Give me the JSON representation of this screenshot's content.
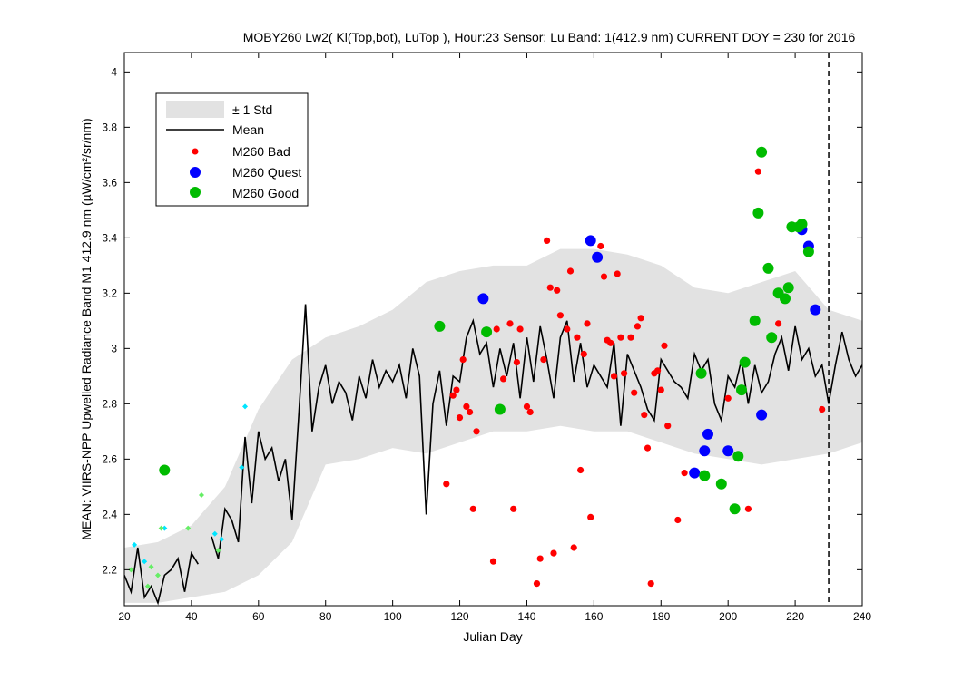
{
  "chart_data": {
    "type": "line",
    "title": "MOBY260   Lw2( Kl(Top,bot), LuTop ),   Hour:23 Sensor: Lu Band: 1(412.9 nm)   CURRENT DOY = 230 for 2016",
    "xlabel": "Julian Day",
    "ylabel": "MEAN: VIIRS-NPP Upwelled Radiance Band M1 412.9 nm (µW/cm²/sr/nm)",
    "xlim": [
      20,
      240
    ],
    "ylim": [
      2.07,
      4.07
    ],
    "x_ticks": [
      "20",
      "40",
      "60",
      "80",
      "100",
      "120",
      "140",
      "160",
      "180",
      "200",
      "220",
      "240"
    ],
    "y_ticks": [
      "2.2",
      "2.4",
      "2.6",
      "2.8",
      "3",
      "3.2",
      "3.4",
      "3.6",
      "3.8",
      "4"
    ],
    "current_doy": 230,
    "grid": false,
    "legend_position": "top-left",
    "legend": [
      {
        "label": "± 1 Std",
        "symbol": "band"
      },
      {
        "label": "Mean",
        "symbol": "line"
      },
      {
        "label": "M260 Bad",
        "symbol": "small-dot"
      },
      {
        "label": "M260 Quest",
        "symbol": "dot"
      },
      {
        "label": "M260 Good",
        "symbol": "dot"
      }
    ],
    "series": [
      {
        "name": "Mean",
        "color": "#000000",
        "x": [
          20,
          22,
          24,
          26,
          28,
          30,
          32,
          34,
          36,
          38,
          40,
          42,
          44,
          46,
          48,
          50,
          52,
          54,
          56,
          58,
          60,
          62,
          64,
          66,
          68,
          70,
          72,
          74,
          76,
          78,
          80,
          82,
          84,
          86,
          88,
          90,
          92,
          94,
          96,
          98,
          100,
          102,
          104,
          106,
          108,
          110,
          112,
          114,
          116,
          118,
          120,
          122,
          124,
          126,
          128,
          130,
          132,
          134,
          136,
          138,
          140,
          142,
          144,
          146,
          148,
          150,
          152,
          154,
          156,
          158,
          160,
          162,
          164,
          166,
          168,
          170,
          172,
          174,
          176,
          178,
          180,
          182,
          184,
          186,
          188,
          190,
          192,
          194,
          196,
          198,
          200,
          202,
          204,
          206,
          208,
          210,
          212,
          214,
          216,
          218,
          220,
          222,
          224,
          226,
          228,
          230,
          232,
          234,
          236,
          238,
          240
        ],
        "y": [
          2.18,
          2.12,
          2.28,
          2.1,
          2.14,
          2.08,
          2.18,
          2.2,
          2.24,
          2.12,
          2.26,
          2.22,
          null,
          2.32,
          2.24,
          2.42,
          2.38,
          2.3,
          2.68,
          2.44,
          2.7,
          2.6,
          2.64,
          2.52,
          2.6,
          2.38,
          2.76,
          3.16,
          2.7,
          2.86,
          2.94,
          2.8,
          2.88,
          2.84,
          2.74,
          2.9,
          2.82,
          2.96,
          2.86,
          2.92,
          2.88,
          2.94,
          2.82,
          3.0,
          2.9,
          2.4,
          2.8,
          2.92,
          2.72,
          2.9,
          2.88,
          3.04,
          3.1,
          2.98,
          3.02,
          2.86,
          3.0,
          2.9,
          3.02,
          2.82,
          3.04,
          2.88,
          3.08,
          2.96,
          2.82,
          3.04,
          3.1,
          2.88,
          3.02,
          2.86,
          2.94,
          2.9,
          2.86,
          3.02,
          2.72,
          2.98,
          2.92,
          2.86,
          2.78,
          2.74,
          2.96,
          2.92,
          2.88,
          2.86,
          2.82,
          2.98,
          2.92,
          2.96,
          2.8,
          2.74,
          2.9,
          2.86,
          2.96,
          2.8,
          2.94,
          2.84,
          2.88,
          2.98,
          3.04,
          2.92,
          3.08,
          2.96,
          3.0,
          2.9,
          2.94,
          2.8,
          2.94,
          3.06,
          2.96,
          2.9,
          2.94
        ]
      },
      {
        "name": "± 1 Std",
        "color": "#e2e2e2",
        "x": [
          20,
          30,
          40,
          50,
          60,
          70,
          80,
          90,
          100,
          110,
          120,
          130,
          140,
          150,
          160,
          170,
          180,
          190,
          200,
          210,
          220,
          230,
          240
        ],
        "lower": [
          2.08,
          2.08,
          2.1,
          2.12,
          2.18,
          2.3,
          2.58,
          2.6,
          2.64,
          2.62,
          2.66,
          2.7,
          2.7,
          2.72,
          2.7,
          2.7,
          2.66,
          2.62,
          2.6,
          2.58,
          2.6,
          2.62,
          2.66
        ],
        "upper": [
          2.28,
          2.3,
          2.36,
          2.5,
          2.78,
          2.96,
          3.04,
          3.08,
          3.14,
          3.24,
          3.28,
          3.3,
          3.3,
          3.36,
          3.36,
          3.34,
          3.3,
          3.22,
          3.2,
          3.24,
          3.28,
          3.14,
          3.1
        ]
      },
      {
        "name": "M260 Bad",
        "color": "#ff0000",
        "x": [
          116,
          118,
          119,
          120,
          121,
          122,
          123,
          124,
          125,
          128,
          130,
          131,
          133,
          135,
          136,
          137,
          138,
          140,
          141,
          143,
          144,
          145,
          146,
          147,
          148,
          149,
          150,
          152,
          153,
          154,
          155,
          156,
          157,
          158,
          159,
          162,
          163,
          164,
          165,
          166,
          167,
          168,
          169,
          171,
          172,
          173,
          174,
          175,
          176,
          177,
          178,
          179,
          180,
          181,
          182,
          185,
          187,
          200,
          206,
          209,
          215,
          226,
          228
        ],
        "y": [
          2.51,
          2.83,
          2.85,
          2.75,
          2.96,
          2.79,
          2.77,
          2.42,
          2.7,
          3.06,
          2.23,
          3.07,
          2.89,
          3.09,
          2.42,
          2.95,
          3.07,
          2.79,
          2.77,
          2.15,
          2.24,
          2.96,
          3.39,
          3.22,
          2.26,
          3.21,
          3.12,
          3.07,
          3.28,
          2.28,
          3.04,
          2.56,
          2.98,
          3.09,
          2.39,
          3.37,
          3.26,
          3.03,
          3.02,
          2.9,
          3.27,
          3.04,
          2.91,
          3.04,
          2.84,
          3.08,
          3.11,
          2.76,
          2.64,
          2.15,
          2.91,
          2.92,
          2.85,
          3.01,
          2.72,
          2.38,
          2.55,
          2.82,
          2.42,
          3.64,
          3.09,
          3.14,
          2.78
        ]
      },
      {
        "name": "M260 Quest",
        "color": "#0000ff",
        "x": [
          127,
          159,
          161,
          190,
          193,
          194,
          200,
          210,
          222,
          224,
          226
        ],
        "y": [
          3.18,
          3.39,
          3.33,
          2.55,
          2.63,
          2.69,
          2.63,
          2.76,
          3.43,
          3.37,
          3.14
        ]
      },
      {
        "name": "M260 Good",
        "color": "#00bb00",
        "x": [
          32,
          114,
          128,
          132,
          192,
          193,
          198,
          202,
          203,
          204,
          205,
          208,
          209,
          210,
          212,
          213,
          215,
          217,
          218,
          219,
          221,
          222,
          224
        ],
        "y": [
          2.56,
          3.08,
          3.06,
          2.78,
          2.91,
          2.54,
          2.51,
          2.42,
          2.61,
          2.85,
          2.95,
          3.1,
          3.49,
          3.71,
          3.29,
          3.04,
          3.2,
          3.18,
          3.22,
          3.44,
          3.44,
          3.45,
          3.35
        ]
      },
      {
        "name": "cyan-markers",
        "color": "#00e5ff",
        "x": [
          23,
          26,
          32,
          47,
          49,
          55,
          56
        ],
        "y": [
          2.29,
          2.23,
          2.35,
          2.33,
          2.31,
          2.57,
          2.79
        ]
      },
      {
        "name": "lightgreen-markers",
        "color": "#66ee66",
        "x": [
          22,
          27,
          28,
          30,
          31,
          39,
          43,
          48
        ],
        "y": [
          2.2,
          2.14,
          2.21,
          2.18,
          2.35,
          2.35,
          2.47,
          2.27
        ]
      }
    ]
  }
}
